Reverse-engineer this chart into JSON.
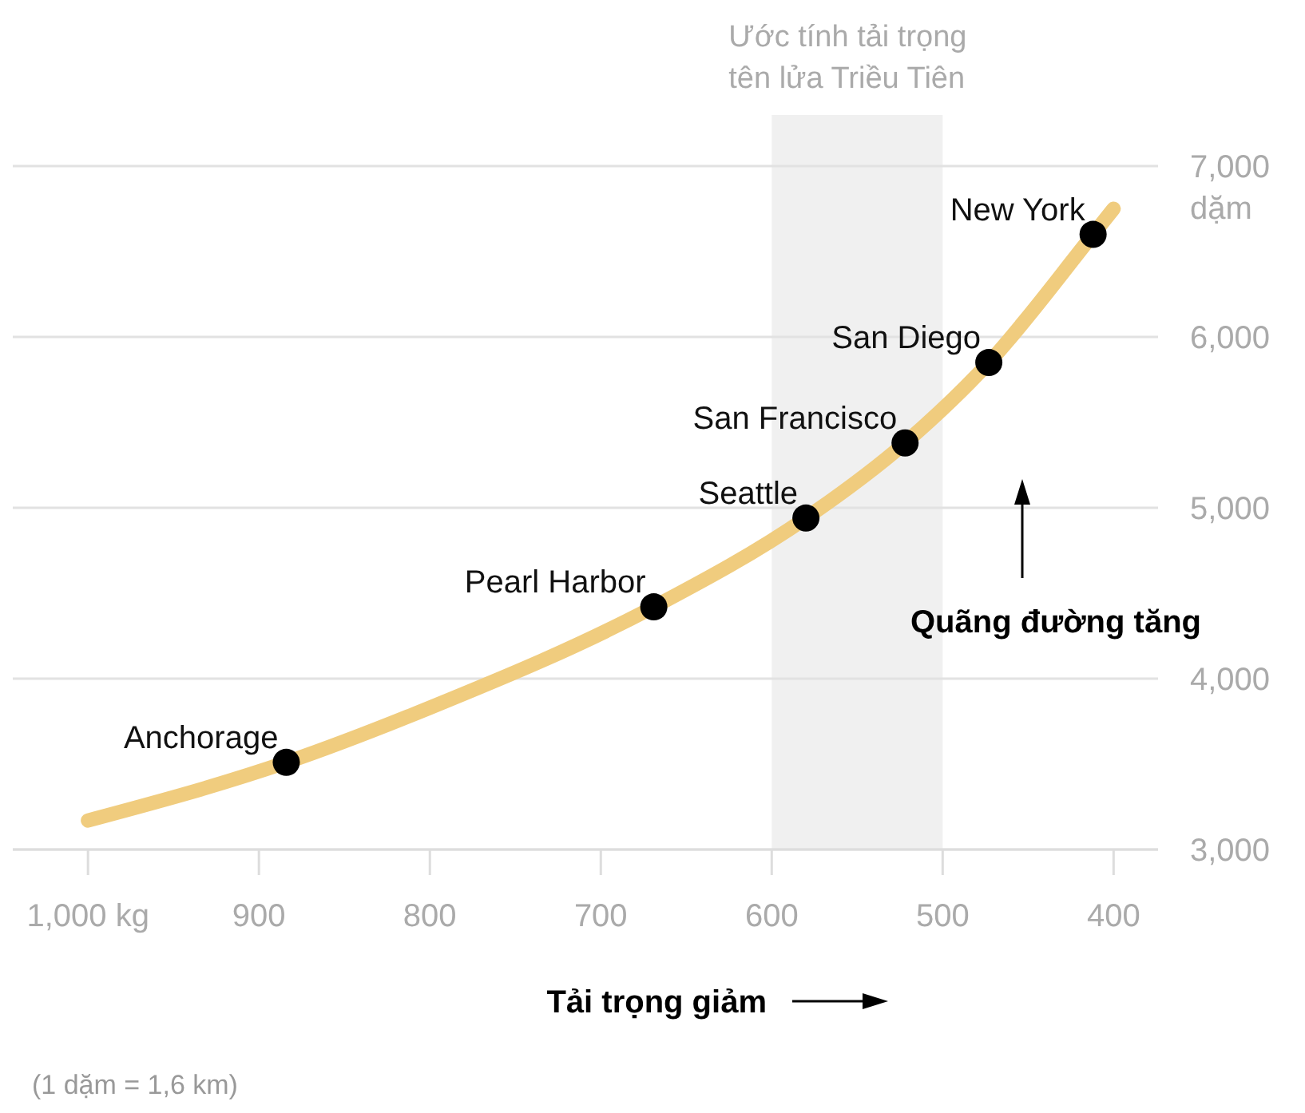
{
  "chart_data": {
    "type": "line",
    "xlabel": "Tải trọng giảm",
    "xlim": [
      1044,
      374
    ],
    "xticks": [
      {
        "value": 1000,
        "label": "1,000 kg"
      },
      900,
      800,
      700,
      600,
      500,
      400
    ],
    "ylim": [
      3000,
      7000
    ],
    "yticks": [
      {
        "value": 3000,
        "label": "3,000"
      },
      {
        "value": 4000,
        "label": "4,000"
      },
      {
        "value": 5000,
        "label": "5,000"
      },
      {
        "value": 6000,
        "label": "6,000"
      },
      {
        "value": 7000,
        "label": "7,000 dặm"
      }
    ],
    "grid": "y",
    "bands": [
      {
        "axis": "x",
        "from": 600,
        "to": 500,
        "label": "Ước tính tải trọng tên lửa Triều Tiên",
        "color": "#f0f0f0"
      }
    ],
    "series": [
      {
        "color": "#f0cc7e",
        "x": [
          1000,
          884,
          800,
          669,
          580,
          522,
          473,
          412,
          400
        ],
        "values": [
          3170,
          3510,
          3830,
          4420,
          4940,
          5380,
          5850,
          6600,
          6750
        ]
      },
      {
        "type": "scatter",
        "color": "#000000",
        "marker": "circle",
        "x": [
          884,
          669,
          580,
          522,
          473,
          412
        ],
        "values": [
          3510,
          4420,
          4940,
          5380,
          5850,
          6600
        ]
      }
    ],
    "annotations": [
      {
        "text": "Anchorage",
        "x": 884,
        "y": 3510
      },
      {
        "text": "Pearl Harbor",
        "x": 669,
        "y": 4420
      },
      {
        "text": "Seattle",
        "x": 580,
        "y": 4940
      },
      {
        "text": "San Francisco",
        "x": 522,
        "y": 5380
      },
      {
        "text": "San Diego",
        "x": 473,
        "y": 5850
      },
      {
        "text": "New York",
        "x": 412,
        "y": 6600
      },
      "Quãng đường tăng",
      "(1 dặm = 1,6 km)"
    ]
  }
}
